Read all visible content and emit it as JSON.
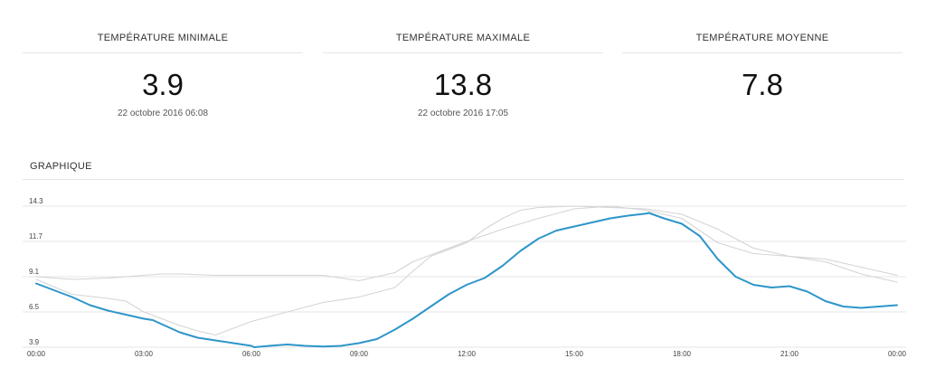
{
  "stats": {
    "min": {
      "label": "TEMPÉRATURE MINIMALE",
      "value": "3.9",
      "date": "22 octobre 2016 06:08"
    },
    "max": {
      "label": "TEMPÉRATURE MAXIMALE",
      "value": "13.8",
      "date": "22 octobre 2016 17:05"
    },
    "avg": {
      "label": "TEMPÉRATURE MOYENNE",
      "value": "7.8"
    }
  },
  "graph_title": "GRAPHIQUE",
  "chart_data": {
    "type": "line",
    "title": "",
    "xlabel": "",
    "ylabel": "",
    "x_ticks": [
      "00:00",
      "03:00",
      "06:00",
      "09:00",
      "12:00",
      "15:00",
      "18:00",
      "21:00",
      "00:00"
    ],
    "y_ticks": [
      "3.9",
      "6.5",
      "9.1",
      "11.7",
      "14.3"
    ],
    "xlim": [
      0,
      24
    ],
    "ylim": [
      3.9,
      14.3
    ],
    "grid": true,
    "colors": {
      "main": "#2e95c9",
      "reference": "#d4d4d4",
      "grid": "#e4e4e4"
    },
    "series": [
      {
        "x": [
          0,
          0.5,
          1,
          1.5,
          2,
          2.5,
          3,
          3.25,
          3.5,
          4,
          4.5,
          5,
          5.5,
          6,
          6.08,
          6.5,
          7,
          7.5,
          8,
          8.5,
          9,
          9.5,
          10,
          10.5,
          11,
          11.5,
          12,
          12.5,
          13,
          13.5,
          14,
          14.5,
          15,
          15.5,
          16,
          16.5,
          17,
          17.08,
          17.5,
          18,
          18.5,
          19,
          19.5,
          20,
          20.5,
          21,
          21.5,
          22,
          22.5,
          23,
          23.5,
          24
        ],
        "values": [
          8.6,
          8.1,
          7.6,
          7.0,
          6.6,
          6.3,
          6.0,
          5.9,
          5.6,
          5.0,
          4.6,
          4.4,
          4.2,
          4.0,
          3.9,
          4.0,
          4.1,
          4.0,
          3.95,
          4.0,
          4.2,
          4.5,
          5.2,
          6.0,
          6.9,
          7.8,
          8.5,
          9.0,
          9.9,
          11.0,
          11.9,
          12.5,
          12.8,
          13.1,
          13.4,
          13.6,
          13.75,
          13.8,
          13.4,
          13.0,
          12.1,
          10.4,
          9.1,
          8.5,
          8.3,
          8.4,
          8.0,
          7.3,
          6.9,
          6.8,
          6.9,
          7.0
        ]
      },
      {
        "x": [
          0,
          1,
          2,
          3,
          3.5,
          4,
          5,
          6,
          7,
          8,
          9,
          10,
          10.5,
          11,
          12,
          13,
          13.5,
          14,
          15,
          16,
          17,
          18,
          19,
          20,
          21,
          22,
          23,
          24
        ],
        "values": [
          9.1,
          8.9,
          9.0,
          9.2,
          9.3,
          9.3,
          9.2,
          9.2,
          9.2,
          9.2,
          8.8,
          9.4,
          10.2,
          10.7,
          11.7,
          12.6,
          13.0,
          13.4,
          14.1,
          14.3,
          14.0,
          13.4,
          11.6,
          10.8,
          10.6,
          10.4,
          9.8,
          9.2
        ]
      },
      {
        "x": [
          0,
          1,
          2,
          2.5,
          3,
          3.5,
          4,
          4.5,
          5,
          5.5,
          6,
          7,
          8,
          9,
          10,
          10.5,
          11,
          12,
          12.5,
          13,
          13.5,
          14,
          15,
          16,
          17,
          18,
          19,
          20,
          21,
          22,
          23,
          24
        ],
        "values": [
          8.9,
          7.8,
          7.5,
          7.3,
          6.5,
          6.0,
          5.5,
          5.1,
          4.8,
          5.3,
          5.8,
          6.5,
          7.2,
          7.6,
          8.3,
          9.5,
          10.6,
          11.6,
          12.6,
          13.4,
          14.0,
          14.2,
          14.3,
          14.2,
          14.1,
          13.7,
          12.6,
          11.2,
          10.6,
          10.2,
          9.3,
          8.7
        ]
      }
    ]
  }
}
